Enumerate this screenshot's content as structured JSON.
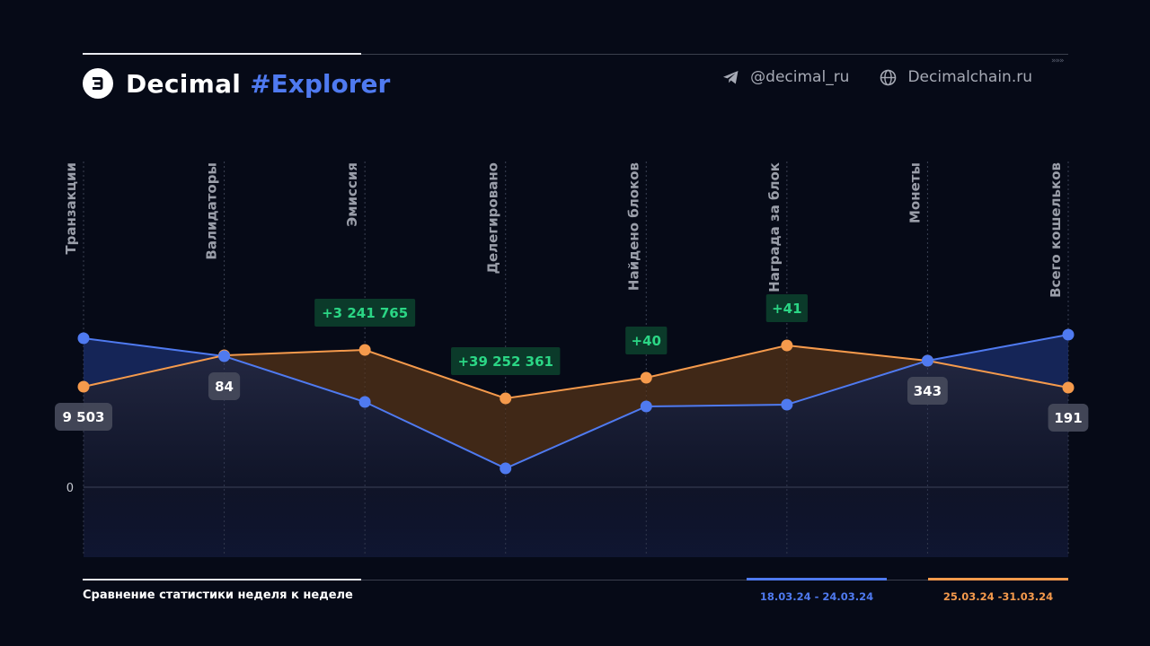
{
  "header": {
    "brand_name": "Decimal",
    "brand_tag": "#Explorer",
    "telegram_handle": "@decimal_ru",
    "website": "Decimalchain.ru",
    "arrows": "»»»"
  },
  "footer": {
    "caption": "Сравнение статистики неделя к неделе"
  },
  "colors": {
    "week1": "#4f7af0",
    "week2": "#f59a4c",
    "increase_badge_bg": "#0b3a2a",
    "increase_badge_text": "#2bd685",
    "background": "#060a17"
  },
  "chart_data": {
    "type": "line",
    "categories": [
      "Транзакции",
      "Валидаторы",
      "Эмиссия",
      "Делегировано",
      "Найдено блоков",
      "Награда за блок",
      "Монеты",
      "Всего кошельков"
    ],
    "zero_label": "0",
    "series": [
      {
        "name": "18.03.24 - 24.03.24",
        "color": "#4f7af0",
        "values": [
          166,
          146,
          95,
          21,
          90,
          92,
          141,
          170
        ]
      },
      {
        "name": "25.03.24 -31.03.24",
        "color": "#f59a4c",
        "values": [
          112,
          147,
          153,
          99,
          122,
          158,
          141,
          111
        ]
      }
    ],
    "value_labels": [
      {
        "category": "Транзакции",
        "text": "9 503"
      },
      {
        "category": "Валидаторы",
        "text": "84"
      },
      {
        "category": "Монеты",
        "text": "343"
      },
      {
        "category": "Всего кошельков",
        "text": "191"
      }
    ],
    "increase_badges": [
      {
        "category": "Эмиссия",
        "text": "+3 241 765"
      },
      {
        "category": "Делегировано",
        "text": "+39 252 361"
      },
      {
        "category": "Найдено блоков",
        "text": "+40"
      },
      {
        "category": "Награда за блок",
        "text": "+41"
      }
    ],
    "grid": true,
    "legend": "bottom-right"
  }
}
